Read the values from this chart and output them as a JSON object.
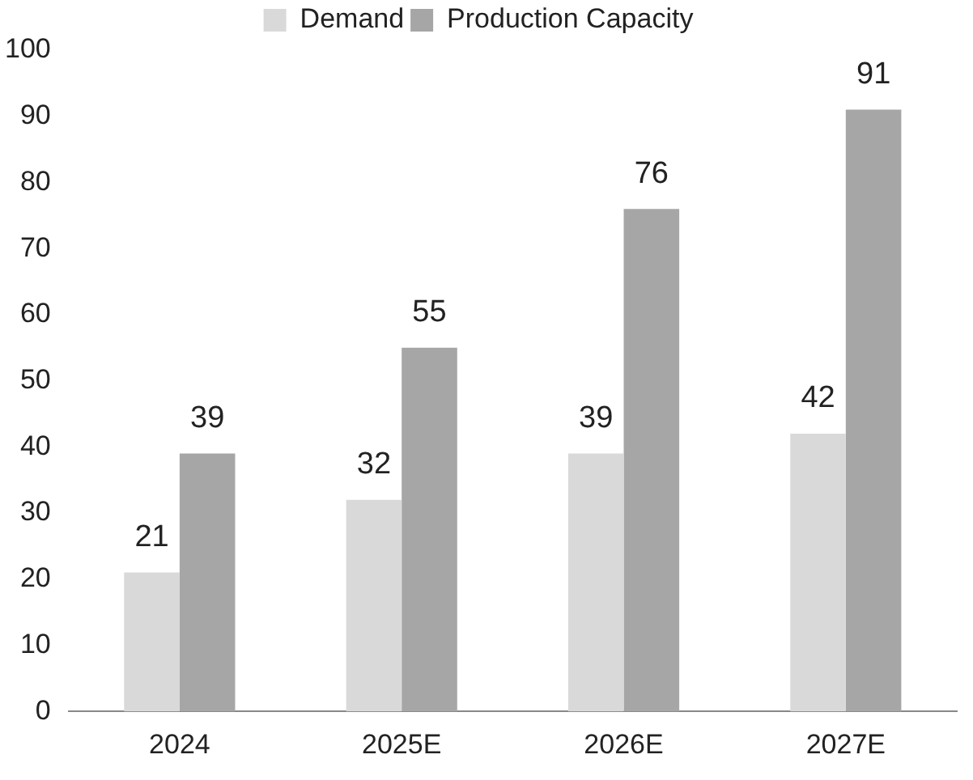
{
  "chart_data": {
    "type": "bar",
    "categories": [
      "2024",
      "2025E",
      "2026E",
      "2027E"
    ],
    "series": [
      {
        "name": "Demand",
        "color": "#d9d9d9",
        "values": [
          21,
          32,
          39,
          42
        ]
      },
      {
        "name": "Production Capacity",
        "color": "#a6a6a6",
        "values": [
          39,
          55,
          76,
          91
        ]
      }
    ],
    "ylim": [
      0,
      100
    ],
    "yticks": [
      0,
      10,
      20,
      30,
      40,
      50,
      60,
      70,
      80,
      90,
      100
    ],
    "grid": false,
    "legend": "top",
    "data_labels": true
  }
}
